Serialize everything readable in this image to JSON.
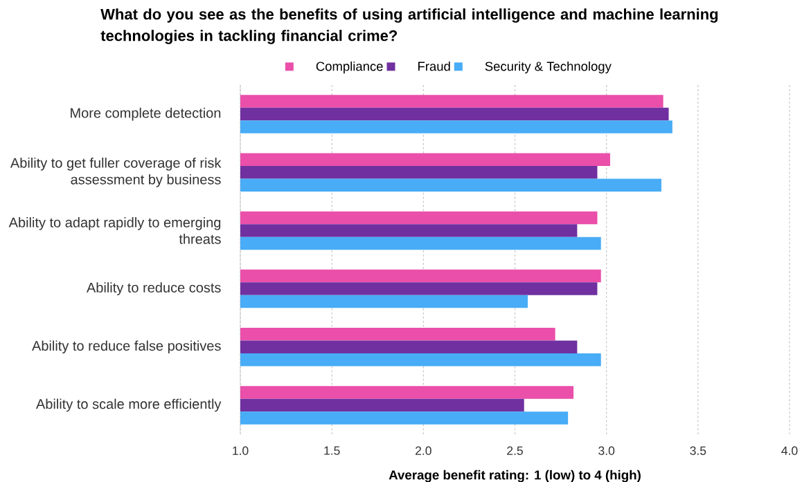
{
  "chart_data": {
    "type": "bar",
    "orientation": "horizontal",
    "title": "What do you see as the benefits of using artificial intelligence and machine learning technologies in tackling financial crime?",
    "xlabel": "Average benefit rating: 1 (low) to 4 (high)",
    "categories": [
      "More complete detection",
      "Ability to get fuller coverage of risk assessment by business",
      "Ability to adapt rapidly to emerging threats",
      "Ability to reduce costs",
      "Ability to reduce false positives",
      "Ability to scale more efficiently"
    ],
    "series": [
      {
        "name": "Compliance",
        "color": "#ea4faa",
        "values": [
          3.31,
          3.02,
          2.95,
          2.97,
          2.72,
          2.82
        ]
      },
      {
        "name": "Fraud",
        "color": "#7030a0",
        "values": [
          3.34,
          2.95,
          2.84,
          2.95,
          2.84,
          2.55
        ]
      },
      {
        "name": "Security & Technology",
        "color": "#48acf6",
        "values": [
          3.36,
          3.3,
          2.97,
          2.57,
          2.97,
          2.79
        ]
      }
    ],
    "xlim": [
      1.0,
      4.0
    ],
    "xticks": [
      {
        "value": 1.0,
        "label": "1.0"
      },
      1.5,
      {
        "value": 2.0,
        "label": "2.0"
      },
      2.5,
      {
        "value": 3.0,
        "label": "3.0"
      },
      3.5,
      {
        "value": 4.0,
        "label": "4.0"
      }
    ],
    "grid": "x",
    "legend": "top"
  }
}
